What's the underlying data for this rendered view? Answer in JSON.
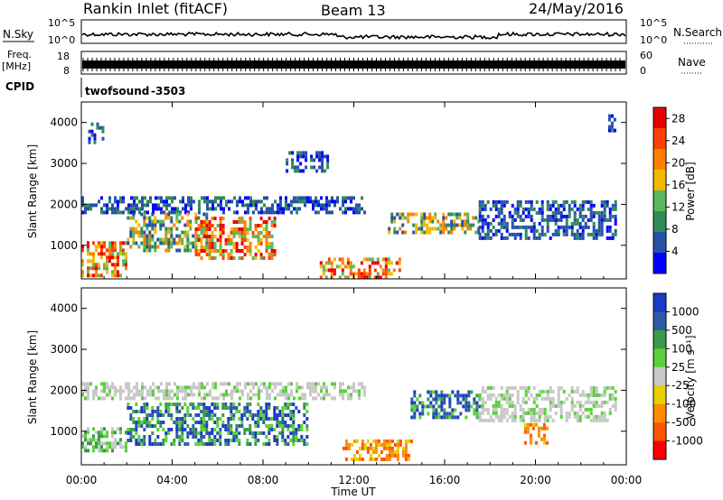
{
  "header": {
    "station": "Rankin Inlet (fitACF)",
    "beam": "Beam 13",
    "date": "24/May/2016"
  },
  "top_panels": {
    "nsky": {
      "label": "N.Sky",
      "ticks": [
        "10^5",
        "10^0"
      ],
      "right_label": "N.Search",
      "right_ticks": [
        "10^5",
        "10^0"
      ]
    },
    "freq": {
      "label_line1": "Freq.",
      "label_line2": "[MHz]",
      "ticks": [
        "18",
        "8"
      ],
      "right_label": "Nave",
      "right_ticks": [
        "60",
        "0"
      ]
    },
    "cpid": {
      "label": "CPID",
      "program": "twofsound",
      "id": "-3503"
    }
  },
  "colors": {
    "power": [
      "#0000ff",
      "#2651a8",
      "#2e8b57",
      "#5ab85a",
      "#f5b800",
      "#ff8000",
      "#ff4000",
      "#e80000"
    ],
    "velocity": [
      "#1a3ac8",
      "#2b5aa8",
      "#3a9a4a",
      "#5ad03a",
      "#c8c8c8",
      "#e8d000",
      "#ff8c00",
      "#ff5500",
      "#ff0000"
    ]
  },
  "chart_data": [
    {
      "type": "heatmap",
      "panel": "power",
      "xlabel": "Time UT",
      "ylabel": "Slant Range [km]",
      "x_ticks": [
        "00:00",
        "04:00",
        "08:00",
        "12:00",
        "16:00",
        "20:00",
        "00:00"
      ],
      "y_ticks": [
        1000,
        2000,
        3000,
        4000
      ],
      "ylim": [
        180,
        4500
      ],
      "colorbar": {
        "label": "Power [dB]",
        "ticks": [
          "4",
          "8",
          "12",
          "16",
          "20",
          "24",
          "28"
        ],
        "range": [
          0,
          30
        ]
      },
      "regions": [
        {
          "t": [
            0.0,
            2.0
          ],
          "r": [
            300,
            1100
          ],
          "level": "high"
        },
        {
          "t": [
            0.0,
            12.5
          ],
          "r": [
            1800,
            2200
          ],
          "level": "low"
        },
        {
          "t": [
            2.0,
            5.5
          ],
          "r": [
            900,
            1800
          ],
          "level": "medium"
        },
        {
          "t": [
            5.0,
            8.5
          ],
          "r": [
            700,
            1700
          ],
          "level": "high"
        },
        {
          "t": [
            10.5,
            14.0
          ],
          "r": [
            200,
            700
          ],
          "level": "high"
        },
        {
          "t": [
            13.5,
            17.5
          ],
          "r": [
            1300,
            1800
          ],
          "level": "medium"
        },
        {
          "t": [
            17.5,
            23.5
          ],
          "r": [
            1200,
            2100
          ],
          "level": "low"
        },
        {
          "t": [
            0.3,
            1.0
          ],
          "r": [
            3500,
            4000
          ],
          "level": "low"
        },
        {
          "t": [
            9.0,
            10.8
          ],
          "r": [
            2800,
            3300
          ],
          "level": "low"
        },
        {
          "t": [
            23.2,
            23.5
          ],
          "r": [
            3800,
            4200
          ],
          "level": "low"
        }
      ]
    },
    {
      "type": "heatmap",
      "panel": "velocity",
      "xlabel": "Time UT",
      "ylabel": "Slant Range [km]",
      "x_ticks": [
        "00:00",
        "04:00",
        "08:00",
        "12:00",
        "16:00",
        "20:00",
        "00:00"
      ],
      "y_ticks": [
        1000,
        2000,
        3000,
        4000
      ],
      "ylim": [
        180,
        4500
      ],
      "colorbar": {
        "label": "Velocity [m s⁻¹]",
        "ticks": [
          "1000",
          "500",
          "100",
          "25",
          "-25",
          "-100",
          "-500",
          "-1000"
        ]
      },
      "regions": [
        {
          "t": [
            0.0,
            12.5
          ],
          "r": [
            1800,
            2200
          ],
          "level": "ground"
        },
        {
          "t": [
            2.0,
            10.0
          ],
          "r": [
            700,
            1700
          ],
          "level": "positive"
        },
        {
          "t": [
            0.0,
            2.0
          ],
          "r": [
            500,
            1100
          ],
          "level": "weak-positive"
        },
        {
          "t": [
            11.5,
            14.5
          ],
          "r": [
            300,
            800
          ],
          "level": "negative"
        },
        {
          "t": [
            14.5,
            17.5
          ],
          "r": [
            1300,
            2000
          ],
          "level": "positive"
        },
        {
          "t": [
            17.5,
            23.5
          ],
          "r": [
            1300,
            2100
          ],
          "level": "ground"
        },
        {
          "t": [
            19.5,
            20.5
          ],
          "r": [
            700,
            1200
          ],
          "level": "negative"
        }
      ]
    }
  ]
}
